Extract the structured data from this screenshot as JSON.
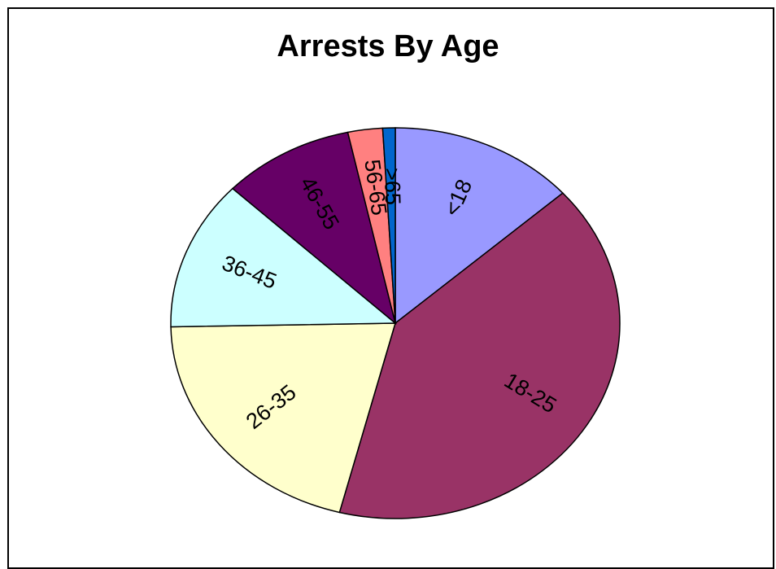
{
  "chart_data": {
    "type": "pie",
    "title": "Arrests By Age",
    "start_angle_deg": 0,
    "direction": "clockwise",
    "labels_on_slices": true,
    "slices": [
      {
        "label": "<18",
        "value": 13.4,
        "color": "#9999FF"
      },
      {
        "label": "18-25",
        "value": 40.6,
        "color": "#993366"
      },
      {
        "label": "26-35",
        "value": 20.7,
        "color": "#FFFFCC"
      },
      {
        "label": "36-45",
        "value": 12.4,
        "color": "#CCFFFF"
      },
      {
        "label": "46-55",
        "value": 9.5,
        "color": "#660066"
      },
      {
        "label": "56-65",
        "value": 2.5,
        "color": "#FF8080"
      },
      {
        "label": ">65",
        "value": 0.9,
        "color": "#0066CC"
      }
    ]
  }
}
